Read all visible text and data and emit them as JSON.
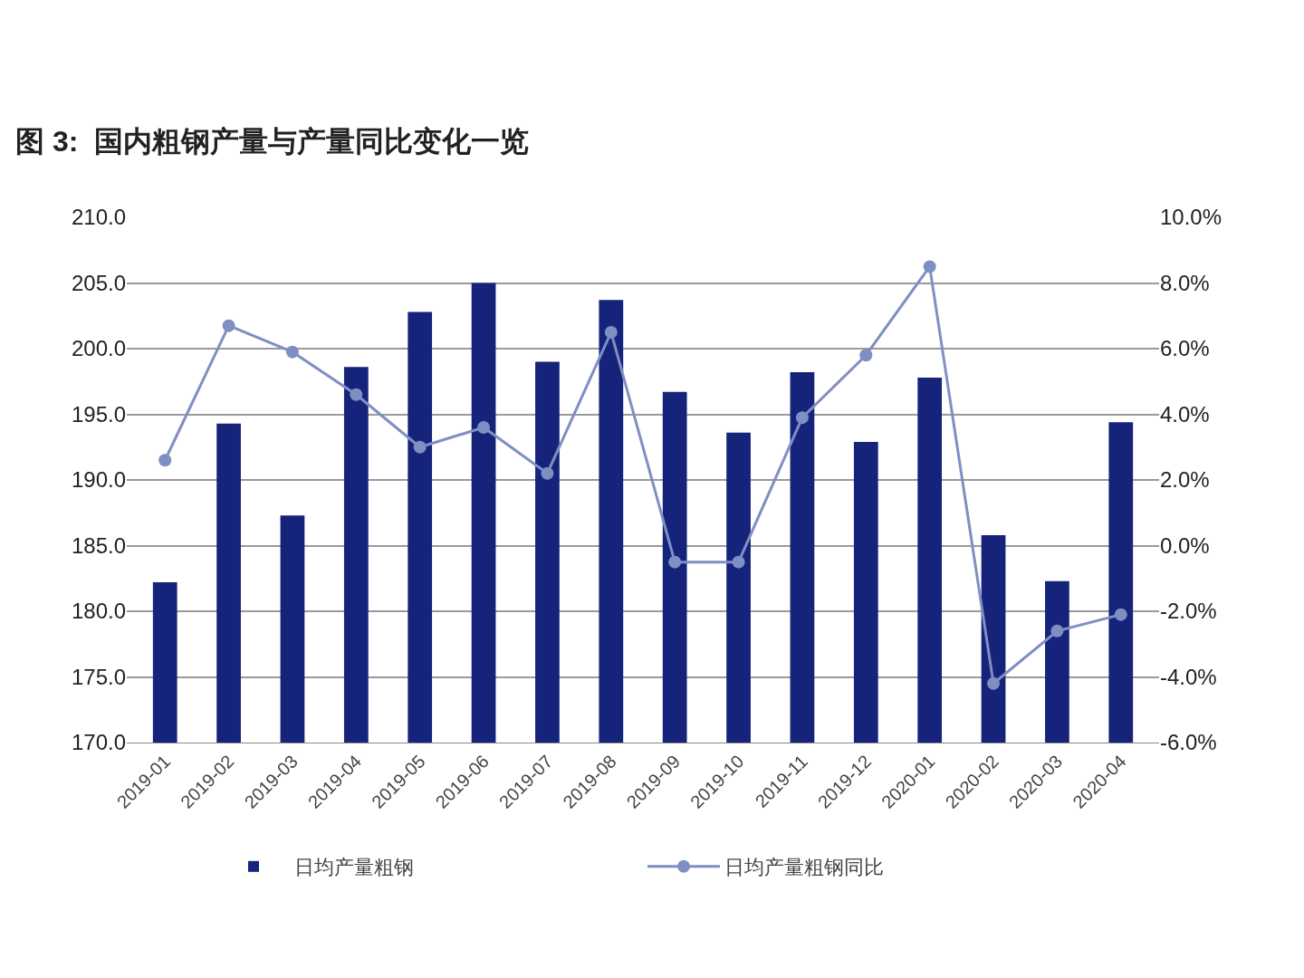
{
  "chart_data": {
    "type": "bar",
    "title": "图 3:  国内粗钢产量与产量同比变化一览",
    "categories": [
      "2019-01",
      "2019-02",
      "2019-03",
      "2019-04",
      "2019-05",
      "2019-06",
      "2019-07",
      "2019-08",
      "2019-09",
      "2019-10",
      "2019-11",
      "2019-12",
      "2020-01",
      "2020-02",
      "2020-03",
      "2020-04"
    ],
    "series": [
      {
        "name": "日均产量粗钢",
        "color": "#16237a",
        "values": [
          182.2,
          194.3,
          187.3,
          198.6,
          202.8,
          205.0,
          199.0,
          203.7,
          196.7,
          193.6,
          198.2,
          192.9,
          197.8,
          185.8,
          182.3,
          194.4
        ]
      },
      {
        "name": "日均产量粗钢同比",
        "type": "line",
        "axis": "y2",
        "color": "#7f8fc4",
        "values": [
          2.6,
          6.7,
          5.9,
          4.6,
          3.0,
          3.6,
          2.2,
          6.5,
          -0.5,
          -0.5,
          3.9,
          5.8,
          8.5,
          -4.2,
          -2.6,
          -2.1
        ]
      }
    ],
    "ylim": [
      170,
      210
    ],
    "yticks": [
      {
        "value": 170,
        "label": "170.0"
      },
      {
        "value": 175,
        "label": "175.0"
      },
      {
        "value": 180,
        "label": "180.0"
      },
      {
        "value": 185,
        "label": "185.0"
      },
      {
        "value": 190,
        "label": "190.0"
      },
      {
        "value": 195,
        "label": "195.0"
      },
      {
        "value": 200,
        "label": "200.0"
      },
      {
        "value": 205,
        "label": "205.0"
      },
      {
        "value": 210,
        "label": "210.0"
      }
    ],
    "y2lim": [
      -6,
      10
    ],
    "y2ticks": [
      {
        "value": -6,
        "label": "-6.0%"
      },
      {
        "value": -4,
        "label": "-4.0%"
      },
      {
        "value": -2,
        "label": "-2.0%"
      },
      {
        "value": 0,
        "label": "0.0%"
      },
      {
        "value": 2,
        "label": "2.0%"
      },
      {
        "value": 4,
        "label": "4.0%"
      },
      {
        "value": 6,
        "label": "6.0%"
      },
      {
        "value": 8,
        "label": "8.0%"
      },
      {
        "value": 10,
        "label": "10.0%"
      }
    ],
    "grid": "y",
    "legend": "bottom",
    "marker": "circle",
    "line_style": "solid"
  }
}
